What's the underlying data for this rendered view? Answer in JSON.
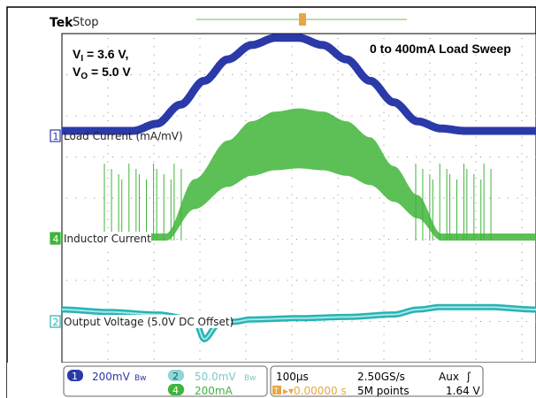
{
  "header": {
    "brand": "Tek",
    "state": "Stop"
  },
  "annotation": {
    "vi_main": "V",
    "vi_sub": "I",
    "vi_rest": " = 3.6 V,",
    "vo_main": "V",
    "vo_sub": "O",
    "vo_rest": " = 5.0 V",
    "sweep": "0 to 400mA Load Sweep"
  },
  "channels": [
    {
      "marker": "1",
      "label": "Load Current (mA/mV)",
      "color": "#2b3aa8"
    },
    {
      "marker": "4",
      "label": "Inductor Current",
      "color": "#3fb53a"
    },
    {
      "marker": "2",
      "label": "Output Voltage (5.0V DC Offset)",
      "color": "#27b3b3"
    }
  ],
  "status": {
    "ch1_num": "1",
    "ch1_scale": "200mV",
    "ch1_bw": "Bw",
    "ch2_num": "2",
    "ch2_scale": "50.0mV",
    "ch2_bw": "Bw",
    "ch4_num": "4",
    "ch4_scale": "200mA",
    "timebase": "100µs",
    "sample_rate": "2.50GS/s",
    "trigger_source": "Aux",
    "trigger_slope": "ʃ",
    "trigger_pos_icon": "T",
    "trigger_pos": "▸▾0.00000 s",
    "record_length": "5M points",
    "trigger_level": "1.64 V"
  },
  "chart_data": {
    "type": "line",
    "x_unit": "div",
    "x_range": [
      0,
      10
    ],
    "series": [
      {
        "name": "Load Current (mA/mV)",
        "x": [
          0,
          1,
          1.5,
          2,
          2.5,
          3,
          3.5,
          4,
          4.5,
          5,
          5.5,
          6,
          6.5,
          7,
          7.5,
          8,
          8.5,
          9,
          10
        ],
        "values": [
          0,
          0,
          0,
          0.3,
          1.1,
          2.1,
          3.0,
          3.6,
          3.9,
          3.9,
          3.6,
          3.0,
          2.1,
          1.2,
          0.4,
          0.1,
          0,
          0,
          0
        ]
      },
      {
        "name": "Inductor Current",
        "x": [
          0,
          2.2,
          2.8,
          3.5,
          4,
          4.5,
          5,
          5.5,
          6,
          6.5,
          7,
          7.5,
          8,
          10
        ],
        "values": [
          0,
          0,
          1.7,
          2.9,
          3.5,
          3.8,
          3.9,
          3.8,
          3.5,
          3.0,
          2.1,
          1.2,
          0,
          0
        ]
      },
      {
        "name": "Output Voltage (5.0V DC Offset)",
        "x": [
          0,
          1,
          2,
          2.8,
          3,
          3.3,
          3.6,
          4,
          5,
          6,
          7,
          7.5,
          8,
          9,
          10
        ],
        "values": [
          0,
          -0.1,
          -0.2,
          -0.4,
          -1.2,
          -0.6,
          -0.5,
          -0.4,
          -0.35,
          -0.3,
          -0.2,
          0,
          0.1,
          0.1,
          0
        ]
      }
    ]
  }
}
